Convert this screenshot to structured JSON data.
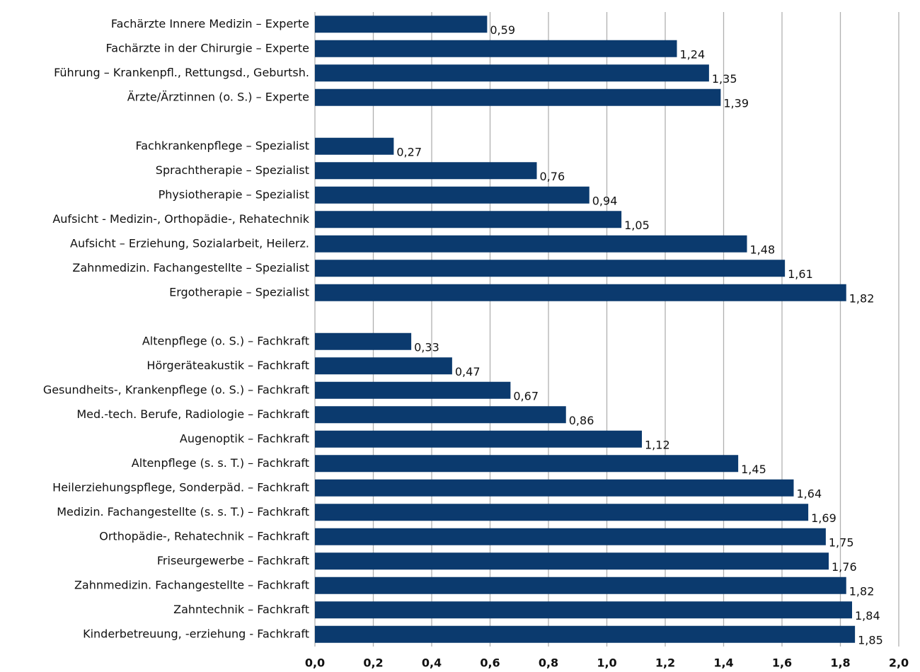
{
  "chart_data": {
    "type": "barh",
    "color": "#0b3a6e",
    "grid": true,
    "categories": [
      "Fachärzte Innere Medizin – Experte",
      "Fachärzte in der Chirurgie – Experte",
      "Führung – Krankenpfl., Rettungsd., Geburtsh.",
      "Ärzte/Ärztinnen (o. S.) – Experte",
      null,
      "Fachkrankenpflege – Spezialist",
      "Sprachtherapie – Spezialist",
      "Physiotherapie – Spezialist",
      "Aufsicht - Medizin-, Orthopädie-, Rehatechnik",
      "Aufsicht – Erziehung, Sozialarbeit, Heilerz.",
      "Zahnmedizin. Fachangestellte – Spezialist",
      "Ergotherapie – Spezialist",
      null,
      "Altenpflege (o. S.) – Fachkraft",
      "Hörgeräteakustik – Fachkraft",
      "Gesundheits-, Krankenpflege (o. S.) – Fachkraft",
      "Med.-tech. Berufe, Radiologie – Fachkraft",
      "Augenoptik – Fachkraft",
      "Altenpflege (s. s. T.) – Fachkraft",
      "Heilerziehungspflege, Sonderpäd. – Fachkraft",
      "Medizin. Fachangestellte (s. s. T.) – Fachkraft",
      "Orthopädie-, Rehatechnik – Fachkraft",
      "Friseurgewerbe – Fachkraft",
      "Zahnmedizin. Fachangestellte – Fachkraft",
      "Zahntechnik – Fachkraft",
      "Kinderbetreuung, -erziehung - Fachkraft"
    ],
    "values": [
      0.59,
      1.24,
      1.35,
      1.39,
      null,
      0.27,
      0.76,
      0.94,
      1.05,
      1.48,
      1.61,
      1.82,
      null,
      0.33,
      0.47,
      0.67,
      0.86,
      1.12,
      1.45,
      1.64,
      1.69,
      1.75,
      1.76,
      1.82,
      1.84,
      1.85
    ],
    "value_labels": [
      "0,59",
      "1,24",
      "1,35",
      "1,39",
      null,
      "0,27",
      "0,76",
      "0,94",
      "1,05",
      "1,48",
      "1,61",
      "1,82",
      null,
      "0,33",
      "0,47",
      "0,67",
      "0,86",
      "1,12",
      "1,45",
      "1,64",
      "1,69",
      "1,75",
      "1,76",
      "1,82",
      "1,84",
      "1,85"
    ],
    "xlim": [
      0,
      2
    ],
    "xticks": [
      {
        "value": 0,
        "label": "0,0"
      },
      {
        "value": 0.2,
        "label": "0,2"
      },
      {
        "value": 0.4,
        "label": "0,4"
      },
      {
        "value": 0.6,
        "label": "0,6"
      },
      {
        "value": 0.8,
        "label": "0,8"
      },
      {
        "value": 1,
        "label": "1,0"
      },
      {
        "value": 1.2,
        "label": "1,2"
      },
      {
        "value": 1.4,
        "label": "1,4"
      },
      {
        "value": 1.6,
        "label": "1,6"
      },
      {
        "value": 1.8,
        "label": "1,8"
      },
      {
        "value": 2,
        "label": "2,0"
      }
    ]
  }
}
